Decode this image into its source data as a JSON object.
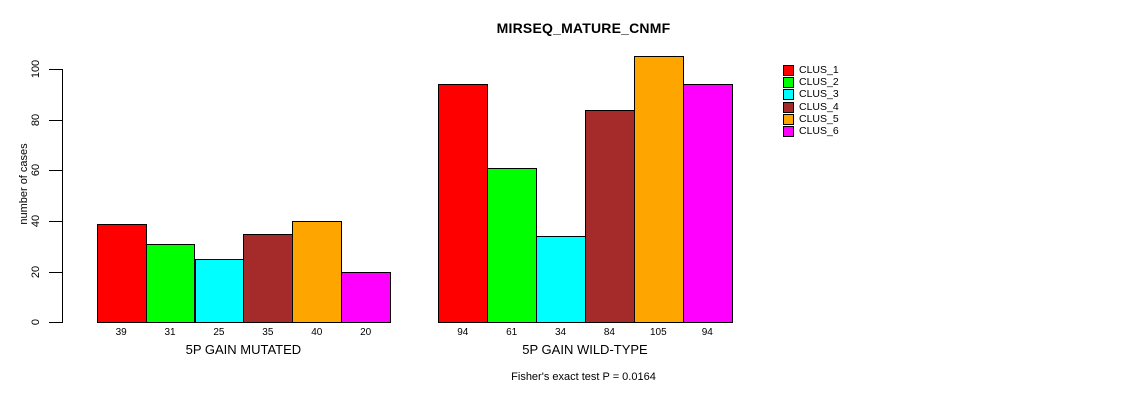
{
  "chart_data": {
    "type": "bar",
    "title": "MIRSEQ_MATURE_CNMF",
    "ylabel": "number of cases",
    "xlabel": "",
    "caption": "Fisher's exact test P = 0.0164",
    "ylim": [
      0,
      105
    ],
    "yticks": [
      0,
      20,
      40,
      60,
      80,
      100
    ],
    "grid": false,
    "legend_position": "top-right",
    "bar_value_labels_shown": true,
    "categories": [
      "5P GAIN MUTATED",
      "5P GAIN WILD-TYPE"
    ],
    "series": [
      {
        "name": "CLUS_1",
        "color": "#FF0000",
        "values": [
          39,
          94
        ]
      },
      {
        "name": "CLUS_2",
        "color": "#00FF00",
        "values": [
          31,
          61
        ]
      },
      {
        "name": "CLUS_3",
        "color": "#00FFFF",
        "values": [
          25,
          34
        ]
      },
      {
        "name": "CLUS_4",
        "color": "#A52A2A",
        "values": [
          35,
          84
        ]
      },
      {
        "name": "CLUS_5",
        "color": "#FFA500",
        "values": [
          40,
          105
        ]
      },
      {
        "name": "CLUS_6",
        "color": "#FF00FF",
        "values": [
          20,
          94
        ]
      }
    ]
  }
}
